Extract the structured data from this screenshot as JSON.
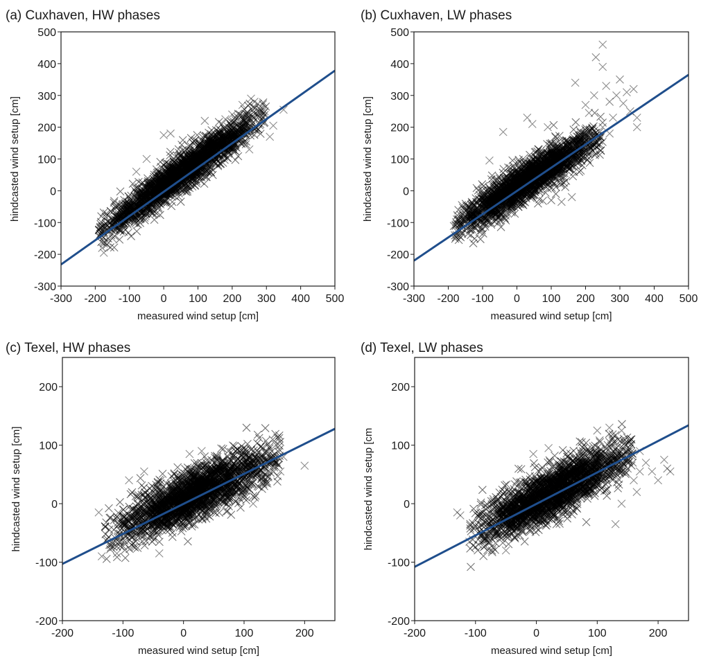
{
  "colors": {
    "fit": "#1f4e8c",
    "marker": "#000000",
    "axis": "#1a1a1a"
  },
  "chart_data": [
    {
      "panel": "a",
      "type": "scatter",
      "title": "(a) Cuxhaven, HW phases",
      "xlabel": "measured wind setup [cm]",
      "ylabel": "hindcasted wind setup [cm]",
      "xlim": [
        -300,
        500
      ],
      "ylim": [
        -300,
        500
      ],
      "xticks": [
        "-300",
        "-200",
        "-100",
        "0",
        "100",
        "200",
        "300",
        "400",
        "500"
      ],
      "yticks": [
        "-300",
        "-200",
        "-100",
        "0",
        "100",
        "200",
        "300",
        "400",
        "500"
      ],
      "marker": "x",
      "cloud": {
        "x_range": [
          -185,
          290
        ],
        "core_slope": 0.78,
        "core_intercept": 15,
        "spread": 28,
        "n": 2200
      },
      "outliers": [
        [
          -180,
          -180
        ],
        [
          -175,
          -195
        ],
        [
          -165,
          -160
        ],
        [
          -150,
          -150
        ],
        [
          -80,
          60
        ],
        [
          -50,
          100
        ],
        [
          0,
          175
        ],
        [
          20,
          180
        ],
        [
          230,
          270
        ],
        [
          255,
          290
        ],
        [
          260,
          255
        ],
        [
          265,
          280
        ],
        [
          295,
          250
        ],
        [
          320,
          205
        ],
        [
          350,
          255
        ],
        [
          225,
          160
        ],
        [
          250,
          130
        ],
        [
          270,
          190
        ],
        [
          310,
          170
        ],
        [
          200,
          240
        ],
        [
          240,
          215
        ],
        [
          180,
          225
        ],
        [
          120,
          220
        ]
      ],
      "fit": {
        "x": [
          -300,
          500
        ],
        "y": [
          -232,
          378
        ]
      }
    },
    {
      "panel": "b",
      "type": "scatter",
      "title": "(b) Cuxhaven, LW phases",
      "xlabel": "measured wind setup [cm]",
      "ylabel": "hindcasted wind setup [cm]",
      "xlim": [
        -300,
        500
      ],
      "ylim": [
        -300,
        500
      ],
      "xticks": [
        "-300",
        "-200",
        "-100",
        "0",
        "100",
        "200",
        "300",
        "400",
        "500"
      ],
      "yticks": [
        "-300",
        "-200",
        "-100",
        "0",
        "100",
        "200",
        "300",
        "400",
        "500"
      ],
      "marker": "x",
      "cloud": {
        "x_range": [
          -175,
          240
        ],
        "core_slope": 0.7,
        "core_intercept": 10,
        "spread": 30,
        "n": 2200
      },
      "outliers": [
        [
          -175,
          -90
        ],
        [
          -80,
          95
        ],
        [
          -40,
          185
        ],
        [
          30,
          230
        ],
        [
          45,
          210
        ],
        [
          90,
          200
        ],
        [
          170,
          340
        ],
        [
          225,
          300
        ],
        [
          230,
          420
        ],
        [
          250,
          460
        ],
        [
          250,
          390
        ],
        [
          260,
          330
        ],
        [
          270,
          280
        ],
        [
          290,
          300
        ],
        [
          300,
          350
        ],
        [
          310,
          275
        ],
        [
          320,
          310
        ],
        [
          340,
          320
        ],
        [
          350,
          230
        ],
        [
          350,
          200
        ],
        [
          330,
          250
        ],
        [
          280,
          230
        ],
        [
          250,
          200
        ],
        [
          270,
          180
        ],
        [
          160,
          -20
        ],
        [
          130,
          -35
        ],
        [
          200,
          270
        ],
        [
          210,
          245
        ]
      ],
      "fit": {
        "x": [
          -300,
          500
        ],
        "y": [
          -220,
          365
        ]
      }
    },
    {
      "panel": "c",
      "type": "scatter",
      "title": "(c) Texel, HW phases",
      "xlabel": "measured wind setup [cm]",
      "ylabel": "hindcasted wind setup [cm]",
      "xlim": [
        -200,
        250
      ],
      "ylim": [
        -200,
        250
      ],
      "xticks": [
        "-200",
        "-100",
        "0",
        "100",
        "200"
      ],
      "yticks": [
        "-200",
        "-100",
        "0",
        "100",
        "200"
      ],
      "marker": "x",
      "cloud": {
        "x_range": [
          -120,
          150
        ],
        "core_slope": 0.48,
        "core_intercept": 8,
        "spread": 22,
        "n": 2200
      },
      "outliers": [
        [
          -140,
          -15
        ],
        [
          -135,
          -90
        ],
        [
          -120,
          -75
        ],
        [
          -110,
          -85
        ],
        [
          -95,
          -55
        ],
        [
          -90,
          40
        ],
        [
          -80,
          -75
        ],
        [
          -65,
          55
        ],
        [
          -40,
          -85
        ],
        [
          10,
          85
        ],
        [
          30,
          90
        ],
        [
          115,
          0
        ],
        [
          150,
          65
        ],
        [
          160,
          55
        ],
        [
          165,
          80
        ],
        [
          200,
          65
        ],
        [
          130,
          75
        ],
        [
          140,
          45
        ],
        [
          120,
          85
        ]
      ],
      "fit": {
        "x": [
          -200,
          250
        ],
        "y": [
          -103,
          128
        ]
      }
    },
    {
      "panel": "d",
      "type": "scatter",
      "title": "(d) Texel, LW phases",
      "xlabel": "measured wind setup [cm]",
      "ylabel": "hindcasted wind setup [cm",
      "xlim": [
        -200,
        250
      ],
      "ylim": [
        -200,
        250
      ],
      "xticks": [
        "-200",
        "-100",
        "0",
        "100",
        "200"
      ],
      "yticks": [
        "-200",
        "-100",
        "0",
        "100",
        "200"
      ],
      "marker": "x",
      "cloud": {
        "x_range": [
          -100,
          150
        ],
        "core_slope": 0.52,
        "core_intercept": 5,
        "spread": 22,
        "n": 2200
      },
      "outliers": [
        [
          -130,
          -15
        ],
        [
          -125,
          -20
        ],
        [
          -110,
          -65
        ],
        [
          -95,
          -70
        ],
        [
          -50,
          -80
        ],
        [
          -5,
          85
        ],
        [
          20,
          95
        ],
        [
          100,
          125
        ],
        [
          120,
          130
        ],
        [
          125,
          110
        ],
        [
          140,
          125
        ],
        [
          130,
          -35
        ],
        [
          150,
          60
        ],
        [
          160,
          40
        ],
        [
          170,
          55
        ],
        [
          180,
          70
        ],
        [
          190,
          55
        ],
        [
          200,
          40
        ],
        [
          210,
          75
        ],
        [
          215,
          60
        ],
        [
          220,
          55
        ],
        [
          150,
          90
        ],
        [
          170,
          90
        ],
        [
          140,
          0
        ],
        [
          165,
          20
        ]
      ],
      "fit": {
        "x": [
          -200,
          250
        ],
        "y": [
          -108,
          134
        ]
      }
    }
  ]
}
